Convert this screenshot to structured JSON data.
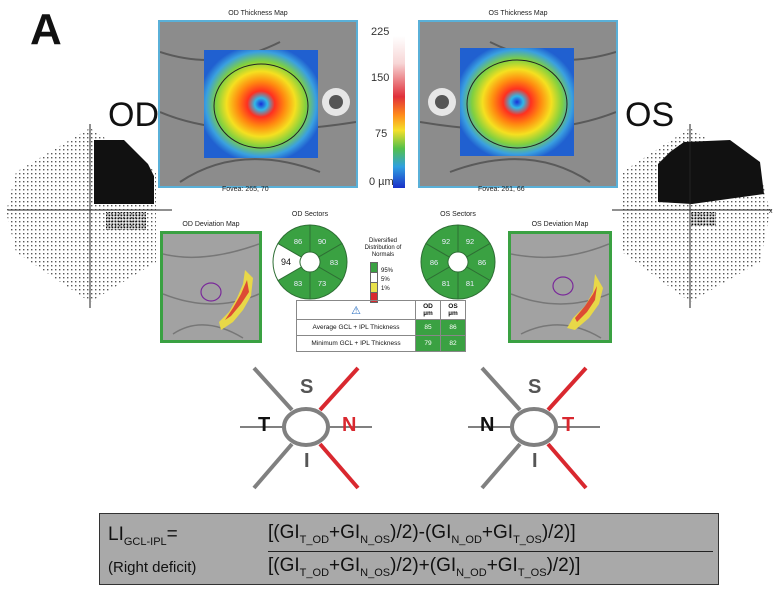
{
  "panel_label": "A",
  "eyes": {
    "left_label": "OD",
    "right_label": "OS"
  },
  "maps": {
    "od_title": "OD Thickness Map",
    "os_title": "OS Thickness Map",
    "od_fovea": "Fovea: 265, 70",
    "os_fovea": "Fovea: 261, 66",
    "scale_ticks": [
      "225",
      "150",
      "75",
      "0 µm"
    ]
  },
  "deviation": {
    "od_title": "OD Deviation Map",
    "os_title": "OS Deviation Map"
  },
  "sectors": {
    "od_title": "OD Sectors",
    "os_title": "OS Sectors",
    "od_values": [
      "90",
      "83",
      "73",
      "83",
      "94",
      "86"
    ],
    "os_values": [
      "92",
      "86",
      "81",
      "81",
      "86",
      "92"
    ]
  },
  "legend": {
    "title": "Distribution of Normals",
    "title_prefix": "Diversified",
    "items": [
      {
        "label": "95%",
        "color": "#ffffff"
      },
      {
        "label": "5%",
        "color": "#e8e14a"
      },
      {
        "label": "1%",
        "color": "#d9282f"
      }
    ]
  },
  "thickness_table": {
    "col_od": "OD µm",
    "col_os": "OS µm",
    "rows": [
      {
        "label": "Average GCL + IPL Thickness",
        "od": "85",
        "os": "86"
      },
      {
        "label": "Minimum GCL + IPL Thickness",
        "od": "79",
        "os": "82"
      }
    ]
  },
  "schematic": {
    "od": {
      "top": "S",
      "left": "T",
      "right": "N",
      "bottom": "I"
    },
    "os": {
      "top": "S",
      "left": "N",
      "right": "T",
      "bottom": "I"
    }
  },
  "formula": {
    "li_main": "LI",
    "li_sub": "GCL-IPL",
    "eq": "=",
    "note": "(Right deficit)"
  },
  "colors": {
    "healthy": "#3aa142",
    "deficit": "#d9282f",
    "neutral_line": "#808080",
    "frame_blue": "#5ab0d8"
  }
}
